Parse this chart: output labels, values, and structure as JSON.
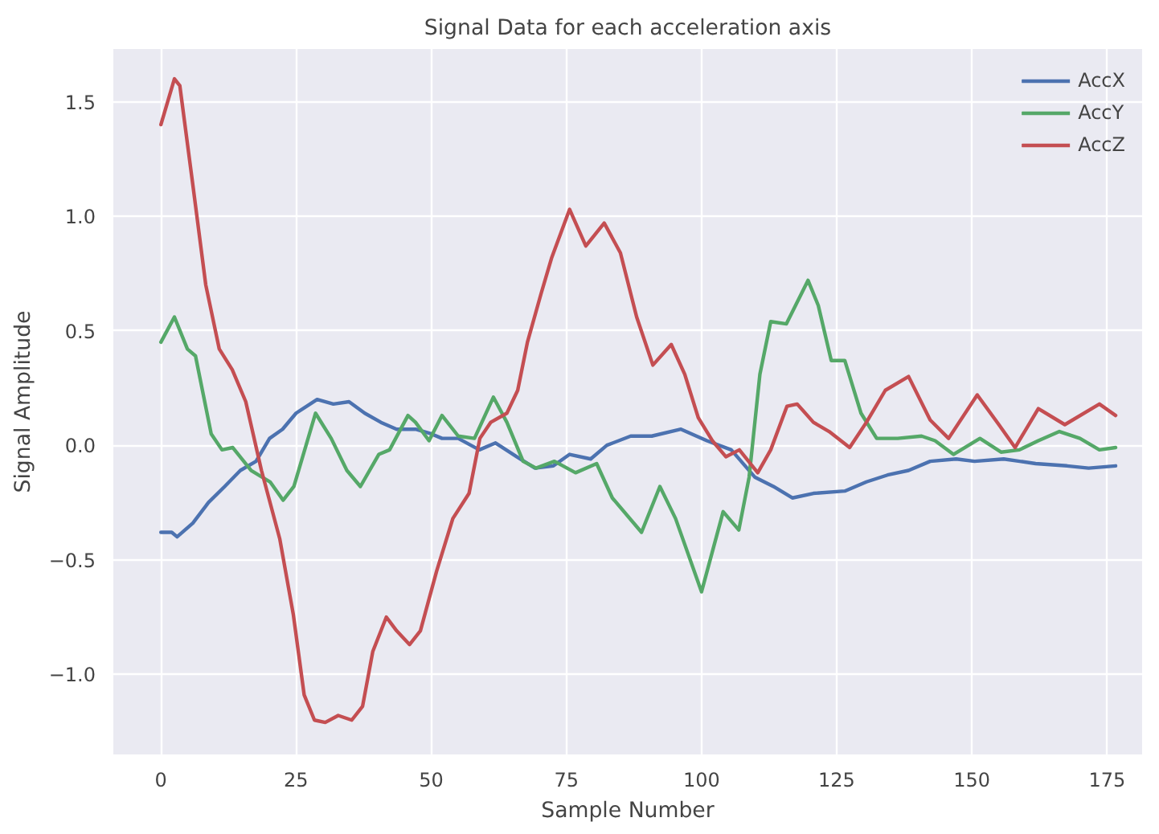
{
  "chart_data": {
    "type": "line",
    "title": "Signal Data for each acceleration axis",
    "xlabel": "Sample Number",
    "ylabel": "Signal Amplitude",
    "xlim": [
      -8.8,
      181.5
    ],
    "ylim": [
      -1.35,
      1.73
    ],
    "xticks": [
      0,
      25,
      50,
      75,
      100,
      125,
      150,
      175
    ],
    "yticks": [
      {
        "value": -1.0,
        "label": "−1.0"
      },
      {
        "value": -0.5,
        "label": "−0.5"
      },
      {
        "value": 0,
        "label": "0.0"
      },
      {
        "value": 0.5,
        "label": "0.5"
      },
      {
        "value": 1.0,
        "label": "1.0"
      },
      {
        "value": 1.5,
        "label": "1.5"
      }
    ],
    "grid": true,
    "legend": "top right",
    "line_style": "solid",
    "marker": "none",
    "series": [
      {
        "name": "AccX",
        "color": "#4c72b0",
        "x": [
          0,
          2,
          3,
          5.9,
          8.8,
          11.8,
          14.7,
          17.6,
          20.1,
          22.5,
          25,
          28.9,
          31.9,
          34.8,
          37.7,
          40.7,
          43.6,
          47.1,
          50,
          52,
          55,
          58.9,
          61.9,
          65.8,
          69.2,
          72.6,
          75.6,
          79.5,
          82.5,
          86.9,
          90.8,
          96.2,
          101,
          105.5,
          109.9,
          113.3,
          116.8,
          120.7,
          126.5,
          130.5,
          134.4,
          138.3,
          142.3,
          147.1,
          150.5,
          155.9,
          161.8,
          167.6,
          171.6,
          176.6
        ],
        "values": [
          -0.38,
          -0.38,
          -0.4,
          -0.34,
          -0.25,
          -0.18,
          -0.11,
          -0.07,
          0.03,
          0.07,
          0.14,
          0.2,
          0.18,
          0.19,
          0.14,
          0.1,
          0.07,
          0.07,
          0.05,
          0.03,
          0.03,
          -0.02,
          0.01,
          -0.05,
          -0.1,
          -0.09,
          -0.04,
          -0.06,
          0.0,
          0.04,
          0.04,
          0.07,
          0.02,
          -0.02,
          -0.14,
          -0.18,
          -0.23,
          -0.21,
          -0.2,
          -0.16,
          -0.13,
          -0.11,
          -0.07,
          -0.06,
          -0.07,
          -0.06,
          -0.08,
          -0.09,
          -0.1,
          -0.09
        ]
      },
      {
        "name": "AccY",
        "color": "#55a868",
        "x": [
          0,
          2.5,
          4.9,
          6.4,
          9.3,
          11.3,
          13.3,
          16.7,
          20.2,
          22.6,
          24.6,
          28.6,
          31.5,
          34.4,
          36.9,
          40.3,
          42.3,
          45.7,
          47.1,
          49.6,
          52,
          55,
          58,
          61.5,
          64,
          67,
          69.4,
          72.8,
          76.7,
          80.6,
          83.5,
          88.9,
          92.3,
          95.2,
          100,
          104,
          106.9,
          108.8,
          110.8,
          112.8,
          115.7,
          119.7,
          121.6,
          124,
          126.5,
          129.5,
          132.4,
          136.3,
          140.7,
          143.2,
          146.6,
          151.5,
          155.4,
          158.8,
          162.3,
          166.2,
          170,
          173.6,
          176.6
        ],
        "values": [
          0.45,
          0.56,
          0.42,
          0.39,
          0.05,
          -0.02,
          -0.01,
          -0.11,
          -0.16,
          -0.24,
          -0.18,
          0.14,
          0.03,
          -0.11,
          -0.18,
          -0.04,
          -0.02,
          0.13,
          0.1,
          0.02,
          0.13,
          0.04,
          0.03,
          0.21,
          0.1,
          -0.07,
          -0.1,
          -0.07,
          -0.12,
          -0.08,
          -0.23,
          -0.38,
          -0.18,
          -0.32,
          -0.64,
          -0.29,
          -0.37,
          -0.14,
          0.31,
          0.54,
          0.53,
          0.72,
          0.61,
          0.37,
          0.37,
          0.14,
          0.03,
          0.03,
          0.04,
          0.02,
          -0.04,
          0.03,
          -0.03,
          -0.02,
          0.02,
          0.06,
          0.03,
          -0.02,
          -0.01
        ]
      },
      {
        "name": "AccZ",
        "color": "#c44e52",
        "x": [
          0,
          2.5,
          3.5,
          6,
          8.3,
          10.8,
          13.2,
          15.7,
          18.6,
          22,
          24.5,
          26.5,
          28.4,
          30.4,
          32.8,
          35.3,
          37.3,
          39.2,
          41.7,
          43.6,
          46,
          48,
          51,
          54,
          57,
          59,
          61,
          64,
          66,
          67.8,
          70.3,
          72.3,
          75.6,
          78.6,
          82,
          85,
          88,
          91,
          94.4,
          96.9,
          99.4,
          102,
          104.5,
          107,
          110.4,
          112.8,
          115.8,
          117.7,
          120.7,
          123.6,
          127.4,
          130.5,
          134,
          138.3,
          142.3,
          145.7,
          151,
          155,
          158,
          162.3,
          167.2,
          173.6,
          176.6
        ],
        "values": [
          1.4,
          1.6,
          1.57,
          1.12,
          0.7,
          0.42,
          0.33,
          0.19,
          -0.11,
          -0.41,
          -0.74,
          -1.09,
          -1.2,
          -1.21,
          -1.18,
          -1.2,
          -1.14,
          -0.9,
          -0.75,
          -0.81,
          -0.87,
          -0.81,
          -0.55,
          -0.32,
          -0.21,
          0.03,
          0.1,
          0.14,
          0.24,
          0.45,
          0.66,
          0.82,
          1.03,
          0.87,
          0.97,
          0.84,
          0.56,
          0.35,
          0.44,
          0.31,
          0.12,
          0.02,
          -0.05,
          -0.02,
          -0.12,
          -0.02,
          0.17,
          0.18,
          0.1,
          0.06,
          -0.01,
          0.1,
          0.24,
          0.3,
          0.11,
          0.03,
          0.22,
          0.09,
          -0.01,
          0.16,
          0.09,
          0.18,
          0.13
        ]
      }
    ]
  }
}
